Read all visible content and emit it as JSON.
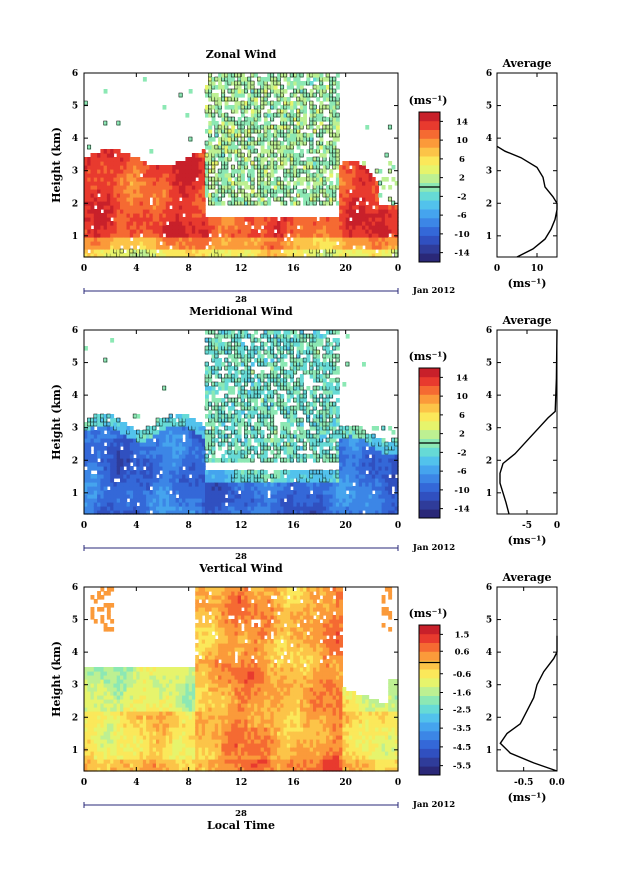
{
  "chart_data": [
    {
      "type": "heatmap",
      "title": "Zonal Wind",
      "ylabel": "Height (km)",
      "xlabel": "",
      "x_ticks": [
        "0",
        "4",
        "8",
        "12",
        "16",
        "20",
        "0"
      ],
      "y_ticks": [
        "1",
        "2",
        "3",
        "4",
        "5",
        "6"
      ],
      "xlim": [
        0,
        24
      ],
      "ylim": [
        0.35,
        6
      ],
      "date_label": "28",
      "month_label": "Jan 2012",
      "colorbar": {
        "unit": "(ms⁻¹)",
        "ticks": [
          "14",
          "10",
          "6",
          "2",
          "-2",
          "-6",
          "-10",
          "-14"
        ],
        "range": [
          -16,
          16
        ]
      },
      "average_profile": {
        "title": "Average",
        "xlabel": "(ms⁻¹)",
        "x_ticks": [
          "0",
          "10"
        ],
        "xlim": [
          0,
          15
        ],
        "height": [
          0.35,
          0.6,
          0.9,
          1.2,
          1.5,
          1.8,
          2.0,
          2.2,
          2.5,
          2.8,
          3.1,
          3.4,
          3.6,
          3.75
        ],
        "value": [
          5,
          9,
          12,
          13.5,
          14.5,
          15,
          15,
          14,
          12,
          11.5,
          10,
          6,
          2,
          0
        ]
      }
    },
    {
      "type": "heatmap",
      "title": "Meridional Wind",
      "ylabel": "Height (km)",
      "xlabel": "",
      "x_ticks": [
        "0",
        "4",
        "8",
        "12",
        "16",
        "20",
        "0"
      ],
      "y_ticks": [
        "1",
        "2",
        "3",
        "4",
        "5",
        "6"
      ],
      "xlim": [
        0,
        24
      ],
      "ylim": [
        0.35,
        6
      ],
      "date_label": "28",
      "month_label": "Jan 2012",
      "colorbar": {
        "unit": "(ms⁻¹)",
        "ticks": [
          "14",
          "10",
          "6",
          "2",
          "-2",
          "-6",
          "-10",
          "-14"
        ],
        "range": [
          -16,
          16
        ]
      },
      "average_profile": {
        "title": "Average",
        "xlabel": "(ms⁻¹)",
        "x_ticks": [
          "-5",
          "0"
        ],
        "xlim": [
          -10,
          0
        ],
        "height": [
          0.35,
          0.7,
          1.0,
          1.3,
          1.6,
          1.9,
          2.2,
          2.6,
          3.0,
          3.3,
          3.5,
          4.5,
          6.0
        ],
        "value": [
          -8,
          -8.5,
          -9,
          -9.5,
          -9.5,
          -9,
          -7,
          -5,
          -3,
          -1.5,
          -0.3,
          -0.1,
          0
        ]
      }
    },
    {
      "type": "heatmap",
      "title": "Vertical Wind",
      "ylabel": "Height (km)",
      "xlabel": "Local Time",
      "x_ticks": [
        "0",
        "4",
        "8",
        "12",
        "16",
        "20",
        "0"
      ],
      "y_ticks": [
        "1",
        "2",
        "3",
        "4",
        "5",
        "6"
      ],
      "xlim": [
        0,
        24
      ],
      "ylim": [
        0.35,
        6
      ],
      "date_label": "28",
      "month_label": "Jan 2012",
      "colorbar": {
        "unit": "(ms⁻¹)",
        "ticks": [
          "1.5",
          "0.6",
          "-0.6",
          "-1.6",
          "-2.5",
          "-3.5",
          "-4.5",
          "-5.5"
        ],
        "range": [
          -6,
          2
        ]
      },
      "average_profile": {
        "title": "Average",
        "xlabel": "(ms⁻¹)",
        "x_ticks": [
          "-0.5",
          "0.0"
        ],
        "xlim": [
          -0.9,
          0
        ],
        "height": [
          0.35,
          0.6,
          0.9,
          1.2,
          1.5,
          1.8,
          2.2,
          2.6,
          3.0,
          3.4,
          3.8,
          4.0,
          4.5
        ],
        "value": [
          0,
          -0.35,
          -0.7,
          -0.85,
          -0.75,
          -0.55,
          -0.45,
          -0.35,
          -0.3,
          -0.2,
          -0.05,
          0,
          0
        ]
      }
    }
  ]
}
